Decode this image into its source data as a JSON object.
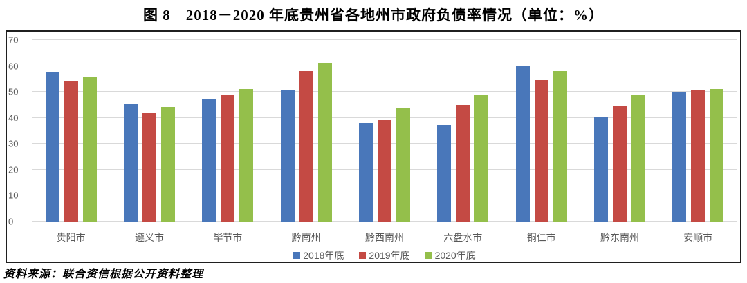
{
  "figure": {
    "title": "图 8　2018－2020 年底贵州省各地州市政府负债率情况（单位：%）",
    "source_note": "资料来源：联合资信根据公开资料整理"
  },
  "chart_data": {
    "type": "bar",
    "title": "图 8　2018－2020 年底贵州省各地州市政府负债率情况（单位：%）",
    "unit": "%",
    "categories": [
      "贵阳市",
      "遵义市",
      "毕节市",
      "黔南州",
      "黔西南州",
      "六盘水市",
      "铜仁市",
      "黔东南州",
      "安顺市"
    ],
    "series": [
      {
        "name": "2018年底",
        "color": "#4977BA",
        "values": [
          57.8,
          45.3,
          47.3,
          50.6,
          38.1,
          37.2,
          60.2,
          40.1,
          50.0
        ]
      },
      {
        "name": "2019年底",
        "color": "#C44A44",
        "values": [
          54.0,
          41.9,
          48.6,
          58.0,
          39.0,
          45.0,
          54.5,
          44.6,
          50.6
        ]
      },
      {
        "name": "2020年底",
        "color": "#94BF4B",
        "values": [
          55.5,
          44.3,
          51.2,
          61.2,
          44.0,
          48.9,
          58.0,
          49.0,
          51.2
        ]
      }
    ],
    "ylim": [
      0,
      70
    ],
    "yticks": [
      0,
      10,
      20,
      30,
      40,
      50,
      60,
      70
    ],
    "grid": true,
    "legend_position": "bottom",
    "gridline_color": "#D9D9D9",
    "axis_text_color": "#595959",
    "frame_border_color": "#1F1F1F"
  }
}
